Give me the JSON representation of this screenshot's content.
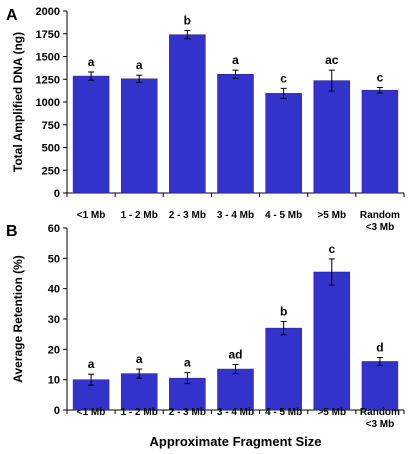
{
  "chart_data": [
    {
      "panel_label": "A",
      "type": "bar",
      "categories": [
        "<1 Mb",
        "1 - 2 Mb",
        "2 - 3 Mb",
        "3 - 4 Mb",
        "4 - 5 Mb",
        ">5 Mb",
        "Random <3 Mb"
      ],
      "category_lines": [
        [
          "<1 Mb"
        ],
        [
          "1 - 2 Mb"
        ],
        [
          "2 - 3 Mb"
        ],
        [
          "3 - 4 Mb"
        ],
        [
          "4 - 5 Mb"
        ],
        [
          ">5 Mb"
        ],
        [
          "Random",
          "<3 Mb"
        ]
      ],
      "values": [
        1285,
        1255,
        1740,
        1305,
        1095,
        1235,
        1130
      ],
      "errors": [
        45,
        40,
        45,
        45,
        55,
        115,
        30
      ],
      "annotations": [
        "a",
        "a",
        "b",
        "a",
        "c",
        "ac",
        "c"
      ],
      "ylabel": "Total Amplified DNA (ng)",
      "ylim": [
        0,
        2000
      ],
      "yticks": [
        0,
        250,
        500,
        750,
        1000,
        1250,
        1500,
        1750,
        2000
      ],
      "bar_color": "#3333cc",
      "grid": false
    },
    {
      "panel_label": "B",
      "type": "bar",
      "categories": [
        "<1 Mb",
        "1 - 2 Mb",
        "2 - 3 Mb",
        "3 - 4 Mb",
        "4 - 5 Mb",
        ">5 Mb",
        "Random <3 Mb"
      ],
      "category_lines": [
        [
          "<1 Mb"
        ],
        [
          "1 - 2 Mb"
        ],
        [
          "2 - 3 Mb"
        ],
        [
          "3 - 4 Mb"
        ],
        [
          "4 - 5 Mb"
        ],
        [
          ">5 Mb"
        ],
        [
          "Random",
          "<3 Mb"
        ]
      ],
      "values": [
        10,
        12,
        10.5,
        13.5,
        27,
        45.5,
        16
      ],
      "errors": [
        1.8,
        1.5,
        1.8,
        1.5,
        2.2,
        4.3,
        1.3
      ],
      "annotations": [
        "a",
        "a",
        "a",
        "ad",
        "b",
        "c",
        "d"
      ],
      "ylabel": "Average Retention (%)",
      "xlabel": "Approximate Fragment Size",
      "ylim": [
        0,
        60
      ],
      "yticks": [
        0,
        10,
        20,
        30,
        40,
        50,
        60
      ],
      "bar_color": "#3333cc",
      "grid": false
    }
  ]
}
